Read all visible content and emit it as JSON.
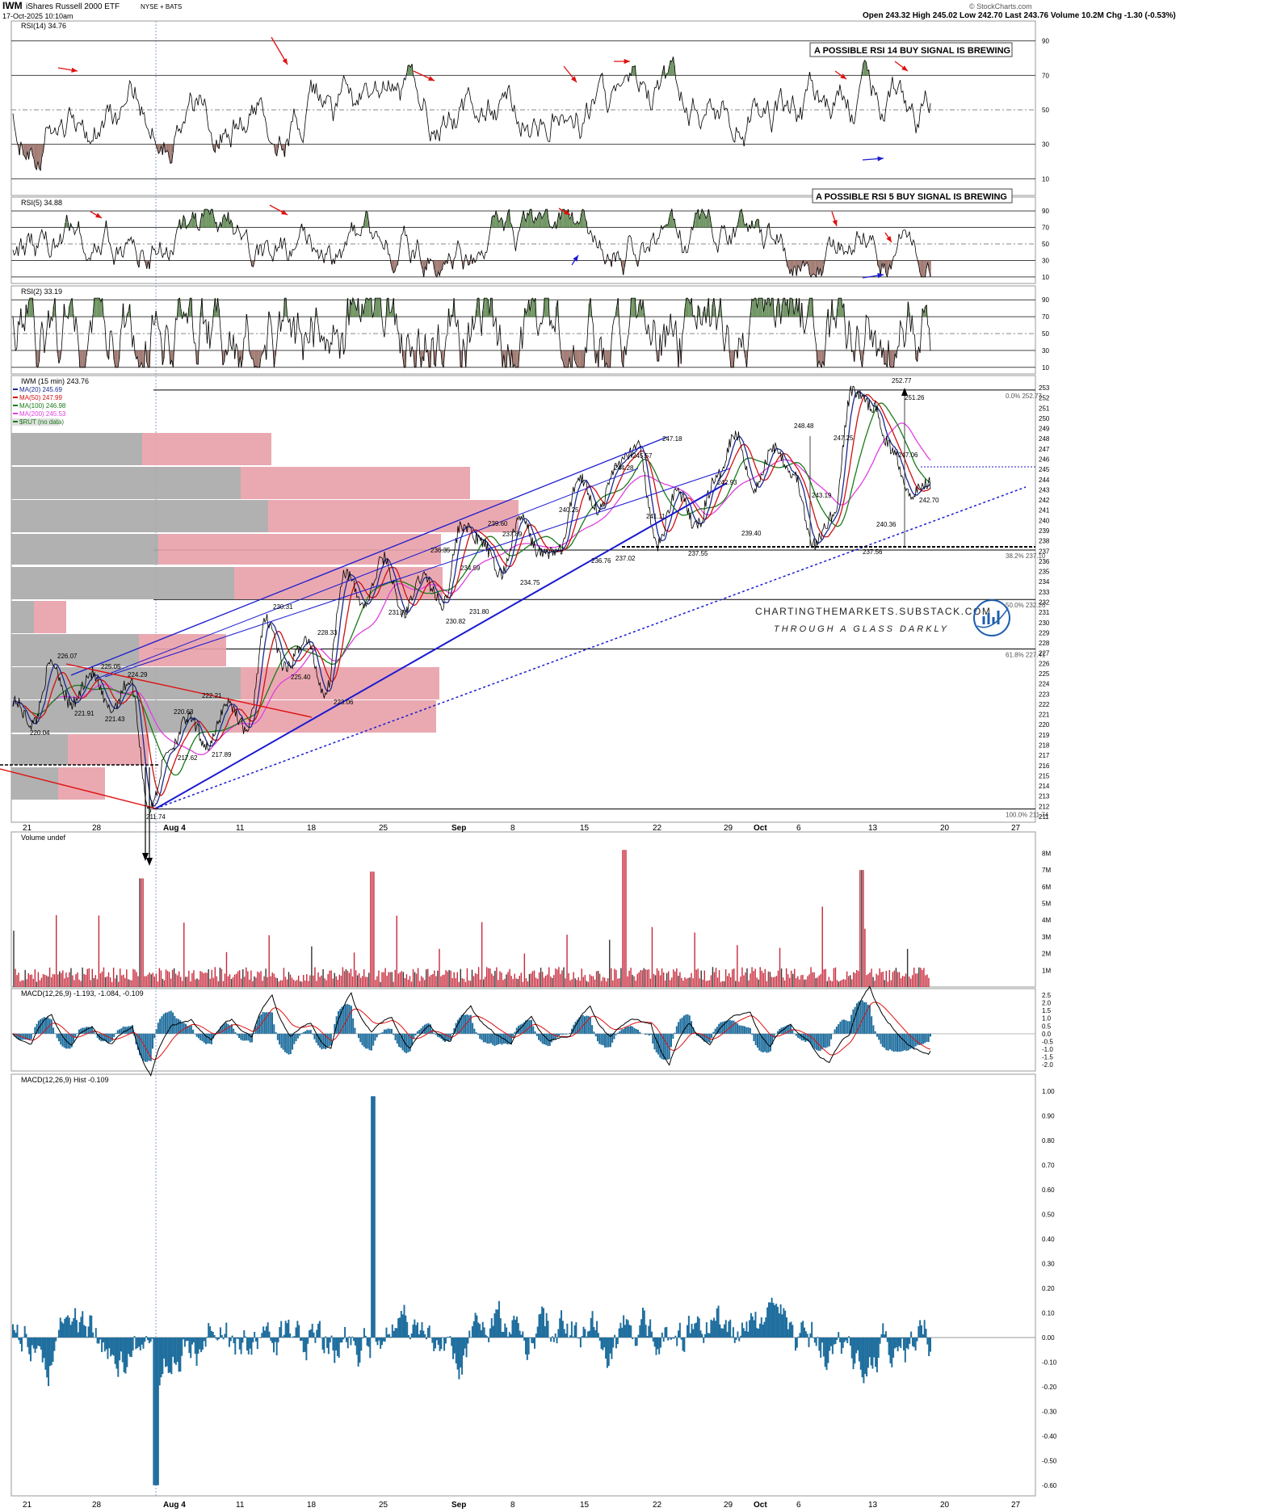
{
  "header": {
    "symbol": "IWM",
    "name": "iShares Russell 2000 ETF",
    "exchange": "NYSE + BATS",
    "date": "17-Oct-2025 10:10am",
    "ohlc_text": "Open 243.32  High 245.02  Low 242.70  Last 243.76  Volume 10.2M  Chg -1.30 (-0.53%)",
    "credit": "© StockCharts.com"
  },
  "annotations": {
    "rsi14_signal": "A POSSIBLE RSI 14 BUY SIGNAL IS BREWING",
    "rsi5_signal": "A POSSIBLE RSI 5 BUY SIGNAL IS BREWING",
    "watermark_url": "CHARTINGTHEMARKETS.SUBSTACK.COM",
    "watermark_tag": "THROUGH A GLASS DARKLY"
  },
  "panels": {
    "rsi14": "RSI(14) 34.76",
    "rsi5": "RSI(5) 34.88",
    "rsi2": "RSI(2) 33.19",
    "price": "IWM (15 min) 243.76",
    "volume": "Volume undef",
    "macd": "MACD(12,26,9) -1.193, -1.084, -0.109",
    "hist": "MACD(12,26,9) Hist -0.109"
  },
  "legend": [
    {
      "label": "MA(20) 245.69",
      "color": "#1c2a8c"
    },
    {
      "label": "MA(50) 247.99",
      "color": "#d01010"
    },
    {
      "label": "MA(100) 246.98",
      "color": "#1a7a1a"
    },
    {
      "label": "MA(200) 245.53",
      "color": "#e040e0"
    },
    {
      "label": "$RUT (no data)",
      "color": "#1a7a1a"
    }
  ],
  "colors": {
    "blue": "#1a1ad0",
    "red": "#e01010",
    "green": "#4a7a3a",
    "pink": "#e8a0a8",
    "grey": "#a8a8a8",
    "vol_red": "#c8283a",
    "macd_blue": "#1f6e9e"
  },
  "chart_data": {
    "type": "line",
    "x_axis_labels": [
      "21",
      "28",
      "Aug 4",
      "11",
      "18",
      "25",
      "Sep",
      "8",
      "15",
      "22",
      "29",
      "Oct",
      "6",
      "13",
      "20",
      "27"
    ],
    "rsi_levels": [
      10,
      30,
      50,
      70,
      90
    ],
    "price_ylim": [
      211,
      253
    ],
    "price_ticks": [
      211,
      212,
      213,
      214,
      215,
      216,
      217,
      218,
      219,
      220,
      221,
      222,
      223,
      224,
      225,
      226,
      227,
      228,
      229,
      230,
      231,
      232,
      233,
      234,
      235,
      236,
      237,
      238,
      239,
      240,
      241,
      242,
      243,
      244,
      245,
      246,
      247,
      248,
      249,
      250,
      251,
      252,
      253
    ],
    "price_path": [
      {
        "x": "21",
        "y": 222.5
      },
      {
        "x": "",
        "y": 220.04
      },
      {
        "x": "",
        "y": 226.07
      },
      {
        "x": "",
        "y": 221.91
      },
      {
        "x": "28",
        "y": 225.05
      },
      {
        "x": "",
        "y": 221.43
      },
      {
        "x": "",
        "y": 224.29
      },
      {
        "x": "",
        "y": 211.74
      },
      {
        "x": "Aug 4",
        "y": 217.62
      },
      {
        "x": "",
        "y": 220.63
      },
      {
        "x": "",
        "y": 217.89
      },
      {
        "x": "",
        "y": 222.21
      },
      {
        "x": "11",
        "y": 219.5
      },
      {
        "x": "",
        "y": 230.31
      },
      {
        "x": "",
        "y": 225.4
      },
      {
        "x": "18",
        "y": 228.33
      },
      {
        "x": "",
        "y": 223.06
      },
      {
        "x": "25",
        "y": 235.0
      },
      {
        "x": "",
        "y": 231.7
      },
      {
        "x": "",
        "y": 236.35
      },
      {
        "x": "Sep",
        "y": 230.82
      },
      {
        "x": "",
        "y": 234.59
      },
      {
        "x": "",
        "y": 231.8
      },
      {
        "x": "8",
        "y": 239.6
      },
      {
        "x": "",
        "y": 237.89
      },
      {
        "x": "",
        "y": 234.75
      },
      {
        "x": "15",
        "y": 240.25
      },
      {
        "x": "",
        "y": 236.76
      },
      {
        "x": "",
        "y": 237.02
      },
      {
        "x": "",
        "y": 244.28
      },
      {
        "x": "",
        "y": 241.11
      },
      {
        "x": "",
        "y": 245.57
      },
      {
        "x": "22",
        "y": 247.18
      },
      {
        "x": "",
        "y": 237.55
      },
      {
        "x": "29",
        "y": 242.93
      },
      {
        "x": "",
        "y": 239.4
      },
      {
        "x": "Oct",
        "y": 244.0
      },
      {
        "x": "6",
        "y": 248.48
      },
      {
        "x": "",
        "y": 243.19
      },
      {
        "x": "",
        "y": 247.25
      },
      {
        "x": "",
        "y": 244.5
      },
      {
        "x": "13",
        "y": 237.56
      },
      {
        "x": "",
        "y": 240.36
      },
      {
        "x": "",
        "y": 252.77
      },
      {
        "x": "",
        "y": 251.26
      },
      {
        "x": "",
        "y": 247.06
      },
      {
        "x": "",
        "y": 242.7
      },
      {
        "x": "20",
        "y": 243.76
      }
    ],
    "price_labels": [
      "252.77",
      "251.26",
      "248.48",
      "247.25",
      "247.18",
      "247.06",
      "245.57",
      "244.28",
      "243.19",
      "242.93",
      "242.70",
      "241.11",
      "240.36",
      "240.25",
      "239.60",
      "239.40",
      "237.89",
      "237.56",
      "237.55",
      "237.02",
      "236.76",
      "236.35",
      "234.75",
      "234.59",
      "231.80",
      "231.70",
      "230.82",
      "230.31",
      "228.33",
      "226.07",
      "225.40",
      "225.05",
      "224.29",
      "223.06",
      "222.21",
      "221.91",
      "221.43",
      "220.63",
      "220.04",
      "217.89",
      "217.62",
      "211.74"
    ],
    "fib_levels": [
      {
        "label": "0.0% 252.77",
        "value": 252.77
      },
      {
        "label": "38.2% 237.10",
        "value": 237.1
      },
      {
        "label": "50.0% 232.26",
        "value": 232.26
      },
      {
        "label": "61.8% 227.41",
        "value": 227.41
      },
      {
        "label": "100.0% 211.74",
        "value": 211.74
      }
    ],
    "volume_ticks": [
      "1M",
      "2M",
      "3M",
      "4M",
      "5M",
      "6M",
      "7M",
      "8M"
    ],
    "macd_ticks": [
      "-2.0",
      "-1.5",
      "-1.0",
      "-0.5",
      "0.0",
      "0.5",
      "1.0",
      "1.5",
      "2.0",
      "2.5"
    ],
    "hist_ticks": [
      "-0.60",
      "-0.50",
      "-0.40",
      "-0.30",
      "-0.20",
      "-0.10",
      "0.00",
      "0.10",
      "0.20",
      "0.30",
      "0.40",
      "0.50",
      "0.60",
      "0.70",
      "0.80",
      "0.90",
      "1.00"
    ]
  }
}
